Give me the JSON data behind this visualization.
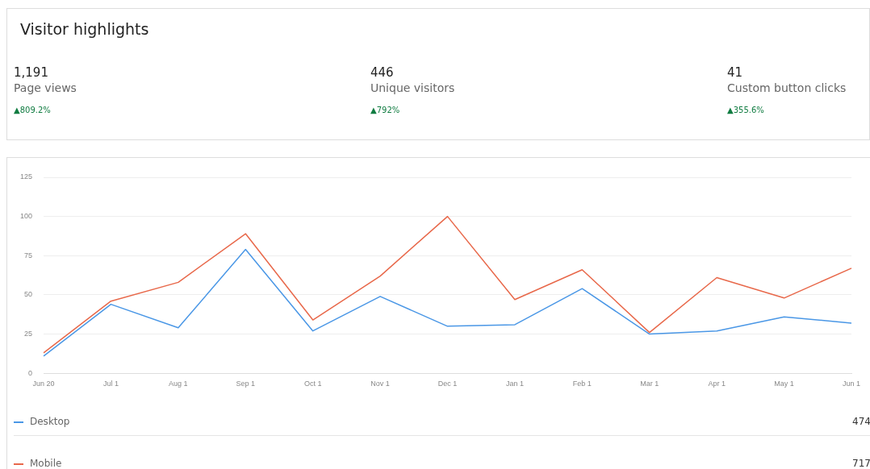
{
  "chart_data": [
    {
      "type": "other",
      "title": "Visitor highlights",
      "annotations": [
        "1,191",
        "Page views",
        "▲809.2%",
        "446",
        "Unique visitors",
        "▲792%",
        "41",
        "Custom button clicks",
        "▲355.6%"
      ]
    },
    {
      "type": "line",
      "categories": [
        "Jun 20",
        "Jul 1",
        "Aug 1",
        "Sep 1",
        "Oct 1",
        "Nov 1",
        "Dec 1",
        "Jan 1",
        "Feb 1",
        "Mar 1",
        "Apr 1",
        "May 1",
        "Jun 1"
      ],
      "series": [
        {
          "name": "Desktop",
          "color": "#4a97e6",
          "values": [
            11,
            44,
            29,
            79,
            27,
            49,
            30,
            31,
            54,
            25,
            27,
            36,
            32
          ]
        },
        {
          "name": "Mobile",
          "color": "#e8684a",
          "values": [
            13,
            46,
            58,
            89,
            34,
            62,
            100,
            47,
            66,
            26,
            61,
            48,
            67
          ]
        }
      ],
      "ylim": [
        0,
        125
      ],
      "yticks": [
        0,
        25,
        50,
        75,
        100,
        125
      ],
      "grid": "y",
      "legend": "bottom",
      "marker": "none",
      "line_style": "solid",
      "annotations": [
        "474",
        "717"
      ]
    }
  ]
}
